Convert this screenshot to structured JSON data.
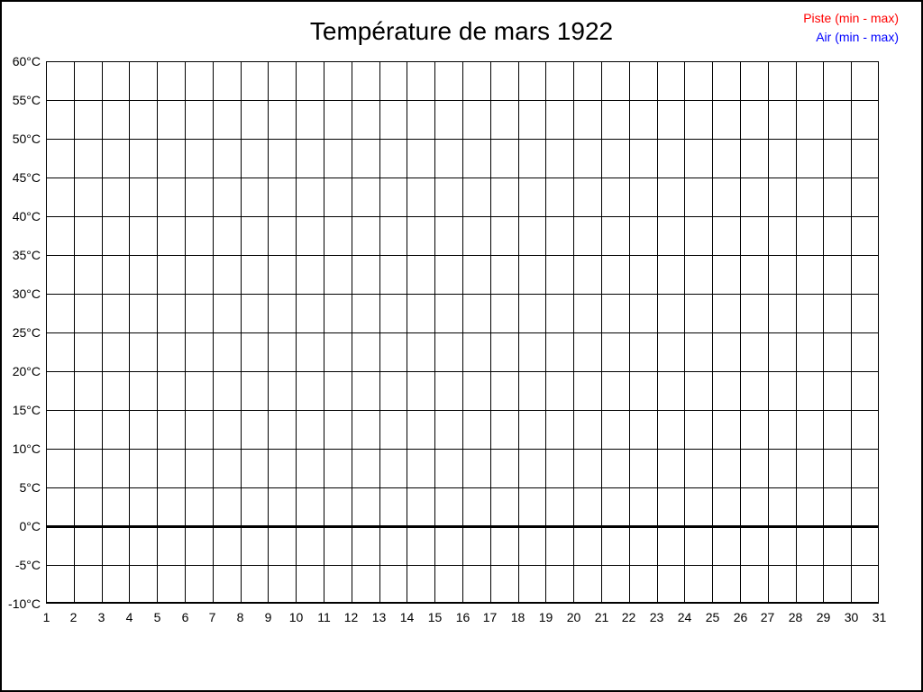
{
  "title": "Température de mars 1922",
  "legend": {
    "position": "top-right",
    "entries": [
      {
        "label": "Piste (min - max)",
        "color": "#ff0000"
      },
      {
        "label": "Air (min - max)",
        "color": "#0000ff"
      }
    ]
  },
  "chart_data": {
    "type": "line",
    "title": "Température de mars 1922",
    "xlabel": "",
    "ylabel": "",
    "x_axis": {
      "ticks": [
        1,
        2,
        3,
        4,
        5,
        6,
        7,
        8,
        9,
        10,
        11,
        12,
        13,
        14,
        15,
        16,
        17,
        18,
        19,
        20,
        21,
        22,
        23,
        24,
        25,
        26,
        27,
        28,
        29,
        30,
        31
      ],
      "range": [
        1,
        31
      ]
    },
    "y_axis": {
      "ticks": [
        60,
        55,
        50,
        45,
        40,
        35,
        30,
        25,
        20,
        15,
        10,
        5,
        0,
        -5,
        -10
      ],
      "tick_labels": [
        "60°C",
        "55°C",
        "50°C",
        "45°C",
        "40°C",
        "35°C",
        "30°C",
        "25°C",
        "20°C",
        "15°C",
        "10°C",
        "5°C",
        "0°C",
        "-5°C",
        "-10°C"
      ],
      "range": [
        -10,
        60
      ],
      "unit": "°C"
    },
    "grid": true,
    "zero_line_thick": true,
    "legend_position": "top-right",
    "series": [
      {
        "name": "Piste (min - max)",
        "color": "#ff0000",
        "values": []
      },
      {
        "name": "Air (min - max)",
        "color": "#0000ff",
        "values": []
      }
    ]
  }
}
